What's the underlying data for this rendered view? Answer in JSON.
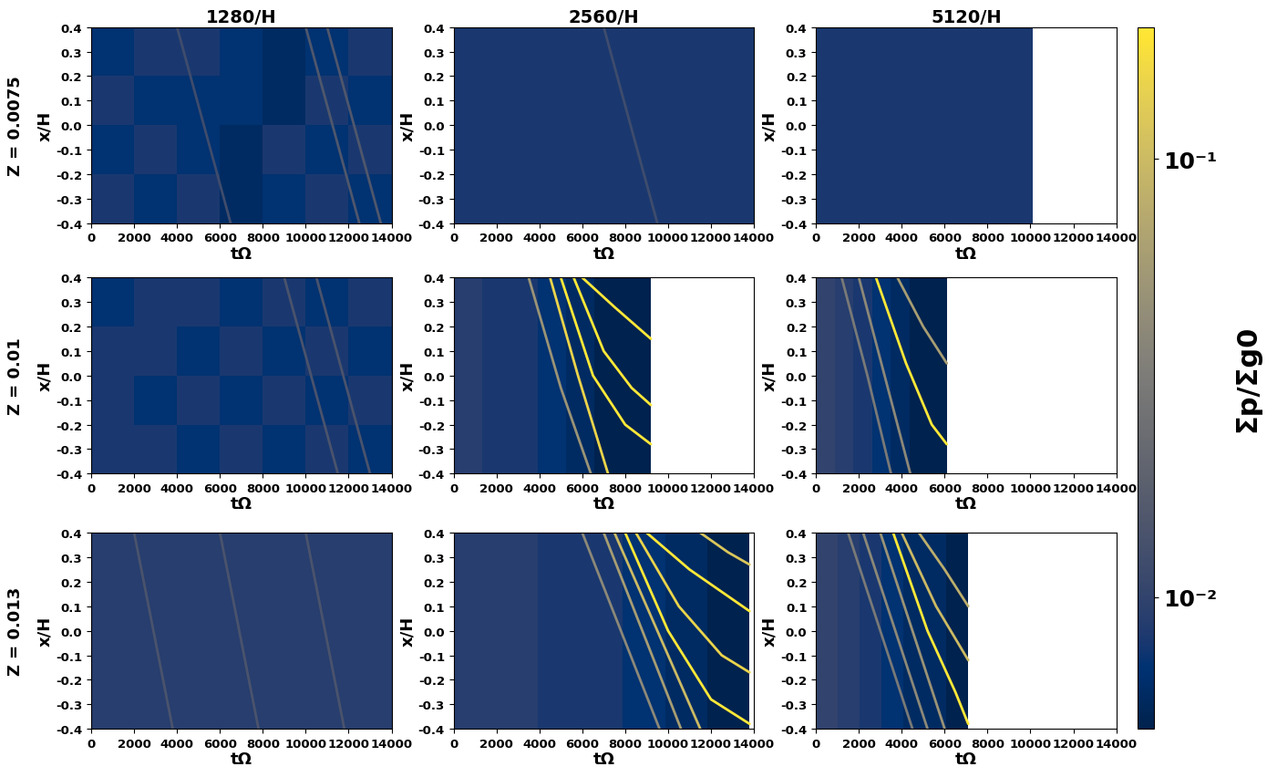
{
  "chart_data": [
    {
      "type": "heatmap",
      "title": "1280/H",
      "row_label": "Z = 0.0075",
      "xlabel": "tΩ",
      "ylabel": "x/H",
      "xlim": [
        0,
        14000
      ],
      "xticks": [
        0,
        2000,
        4000,
        6000,
        8000,
        10000,
        12000,
        14000
      ],
      "ylim": [
        -0.4,
        0.4
      ],
      "yticks": [
        -0.4,
        -0.3,
        -0.2,
        -0.1,
        {
          "value": 0,
          "label": "0.0"
        },
        0.1,
        0.2,
        0.3,
        0.4
      ],
      "t_end": 14000,
      "cells": [
        [
          0.008,
          0.007,
          0.008,
          0.006,
          0.007,
          0.008,
          0.007
        ],
        [
          0.007,
          0.008,
          0.007,
          0.006,
          0.008,
          0.007,
          0.008
        ],
        [
          0.008,
          0.007,
          0.007,
          0.007,
          0.006,
          0.008,
          0.007
        ],
        [
          0.007,
          0.008,
          0.008,
          0.007,
          0.006,
          0.007,
          0.008
        ]
      ],
      "tracks": [
        {
          "t": [
            10000,
            12500
          ],
          "x": [
            0.4,
            -0.4
          ],
          "value": 0.015
        },
        {
          "t": [
            11000,
            13500
          ],
          "x": [
            0.4,
            -0.4
          ],
          "value": 0.015
        },
        {
          "t": [
            4000,
            6500
          ],
          "x": [
            0.4,
            -0.4
          ],
          "value": 0.012
        }
      ],
      "colorbar": {
        "range": [
          0.005,
          0.2
        ],
        "ticks": [
          {
            "value": 0.01,
            "label": "10⁻²"
          },
          {
            "value": 0.1,
            "label": "10⁻¹"
          }
        ],
        "label": "Σp/Σg0",
        "log": true,
        "color": "cividis"
      }
    },
    {
      "type": "heatmap",
      "title": "2560/H",
      "xlabel": "tΩ",
      "ylabel": "x/H",
      "xlim": [
        0,
        14000
      ],
      "xticks": [
        0,
        2000,
        4000,
        6000,
        8000,
        10000,
        12000,
        14000
      ],
      "ylim": [
        -0.4,
        0.4
      ],
      "yticks": [
        -0.4,
        -0.3,
        -0.2,
        -0.1,
        {
          "value": 0,
          "label": "0.0"
        },
        0.1,
        0.2,
        0.3,
        0.4
      ],
      "t_end": 14000,
      "cells": [
        [
          0.008,
          0.008,
          0.008,
          0.008,
          0.008,
          0.008,
          0.008
        ],
        [
          0.008,
          0.008,
          0.008,
          0.008,
          0.008,
          0.008,
          0.008
        ],
        [
          0.008,
          0.008,
          0.008,
          0.008,
          0.008,
          0.008,
          0.008
        ],
        [
          0.008,
          0.008,
          0.008,
          0.008,
          0.008,
          0.008,
          0.008
        ]
      ],
      "tracks": [
        {
          "t": [
            7000,
            9500
          ],
          "x": [
            0.4,
            -0.4
          ],
          "value": 0.012
        }
      ],
      "colorbar": null
    },
    {
      "type": "heatmap",
      "title": "5120/H",
      "xlabel": "tΩ",
      "ylabel": "x/H",
      "xlim": [
        0,
        14000
      ],
      "xticks": [
        0,
        2000,
        4000,
        6000,
        8000,
        10000,
        12000,
        14000
      ],
      "ylim": [
        -0.4,
        0.4
      ],
      "yticks": [
        -0.4,
        -0.3,
        -0.2,
        -0.1,
        {
          "value": 0,
          "label": "0.0"
        },
        0.1,
        0.2,
        0.3,
        0.4
      ],
      "t_end": 10100,
      "cells": [
        [
          0.008,
          0.008,
          0.008,
          0.008,
          0.008,
          0.008,
          0.008
        ],
        [
          0.008,
          0.008,
          0.008,
          0.008,
          0.008,
          0.008,
          0.008
        ],
        [
          0.008,
          0.008,
          0.008,
          0.008,
          0.008,
          0.008,
          0.008
        ],
        [
          0.008,
          0.008,
          0.008,
          0.008,
          0.008,
          0.008,
          0.008
        ]
      ],
      "tracks": [],
      "colorbar": null
    },
    {
      "type": "heatmap",
      "row_label": "Z = 0.01",
      "xlabel": "tΩ",
      "ylabel": "x/H",
      "xlim": [
        0,
        14000
      ],
      "xticks": [
        0,
        2000,
        4000,
        6000,
        8000,
        10000,
        12000,
        14000
      ],
      "ylim": [
        -0.4,
        0.4
      ],
      "yticks": [
        -0.4,
        -0.3,
        -0.2,
        -0.1,
        {
          "value": 0,
          "label": "0.0"
        },
        0.1,
        0.2,
        0.3,
        0.4
      ],
      "t_end": 14000,
      "cells": [
        [
          0.008,
          0.008,
          0.007,
          0.008,
          0.007,
          0.008,
          0.007
        ],
        [
          0.008,
          0.007,
          0.008,
          0.007,
          0.008,
          0.007,
          0.008
        ],
        [
          0.008,
          0.008,
          0.007,
          0.008,
          0.007,
          0.008,
          0.007
        ],
        [
          0.007,
          0.008,
          0.008,
          0.007,
          0.008,
          0.007,
          0.008
        ]
      ],
      "tracks": [
        {
          "t": [
            9000,
            11500
          ],
          "x": [
            0.4,
            -0.4
          ],
          "value": 0.014
        },
        {
          "t": [
            10500,
            13000
          ],
          "x": [
            0.4,
            -0.4
          ],
          "value": 0.014
        }
      ],
      "colorbar": null
    },
    {
      "type": "heatmap",
      "xlabel": "tΩ",
      "ylabel": "x/H",
      "xlim": [
        0,
        14000
      ],
      "xticks": [
        0,
        2000,
        4000,
        6000,
        8000,
        10000,
        12000,
        14000
      ],
      "ylim": [
        -0.4,
        0.4
      ],
      "yticks": [
        -0.4,
        -0.3,
        -0.2,
        -0.1,
        {
          "value": 0,
          "label": "0.0"
        },
        0.1,
        0.2,
        0.3,
        0.4
      ],
      "t_end": 9200,
      "cells": [
        [
          0.009,
          0.008,
          0.008,
          0.007,
          0.006,
          0.005,
          0.005
        ],
        [
          0.009,
          0.008,
          0.008,
          0.007,
          0.006,
          0.005,
          0.005
        ],
        [
          0.009,
          0.008,
          0.008,
          0.007,
          0.006,
          0.005,
          0.005
        ],
        [
          0.009,
          0.008,
          0.008,
          0.007,
          0.006,
          0.005,
          0.005
        ]
      ],
      "tracks": [
        {
          "t": [
            3500,
            5000,
            6400
          ],
          "x": [
            0.4,
            -0.05,
            -0.4
          ],
          "value": 0.05
        },
        {
          "t": [
            4500,
            5800,
            7200
          ],
          "x": [
            0.4,
            0.0,
            -0.4
          ],
          "value": 0.15
        },
        {
          "t": [
            5000,
            6500,
            8000,
            9200
          ],
          "x": [
            0.4,
            0.0,
            -0.2,
            -0.28
          ],
          "value": 0.2
        },
        {
          "t": [
            5600,
            7000,
            8300,
            9200
          ],
          "x": [
            0.4,
            0.1,
            -0.05,
            -0.12
          ],
          "value": 0.2
        },
        {
          "t": [
            6000,
            7500,
            9200
          ],
          "x": [
            0.4,
            0.28,
            0.15
          ],
          "value": 0.2
        }
      ],
      "colorbar": null
    },
    {
      "type": "heatmap",
      "xlabel": "tΩ",
      "ylabel": "x/H",
      "xlim": [
        0,
        14000
      ],
      "xticks": [
        0,
        2000,
        4000,
        6000,
        8000,
        10000,
        12000,
        14000
      ],
      "ylim": [
        -0.4,
        0.4
      ],
      "yticks": [
        -0.4,
        -0.3,
        -0.2,
        -0.1,
        {
          "value": 0,
          "label": "0.0"
        },
        0.1,
        0.2,
        0.3,
        0.4
      ],
      "t_end": 6100,
      "cells": [
        [
          0.01,
          0.009,
          0.008,
          0.007,
          0.006,
          0.005,
          0.005
        ],
        [
          0.01,
          0.009,
          0.008,
          0.007,
          0.006,
          0.005,
          0.005
        ],
        [
          0.01,
          0.009,
          0.008,
          0.007,
          0.006,
          0.005,
          0.005
        ],
        [
          0.01,
          0.009,
          0.008,
          0.007,
          0.006,
          0.005,
          0.005
        ]
      ],
      "tracks": [
        {
          "t": [
            1200,
            2400,
            3500
          ],
          "x": [
            0.4,
            0.0,
            -0.4
          ],
          "value": 0.03
        },
        {
          "t": [
            2000,
            3200,
            4400
          ],
          "x": [
            0.4,
            0.0,
            -0.4
          ],
          "value": 0.04
        },
        {
          "t": [
            2800,
            4200,
            5400,
            6100
          ],
          "x": [
            0.4,
            0.05,
            -0.2,
            -0.28
          ],
          "value": 0.2
        },
        {
          "t": [
            3800,
            5000,
            6100
          ],
          "x": [
            0.4,
            0.2,
            0.05
          ],
          "value": 0.06
        }
      ],
      "colorbar": null
    },
    {
      "type": "heatmap",
      "row_label": "Z = 0.013",
      "xlabel": "tΩ",
      "ylabel": "x/H",
      "xlim": [
        0,
        14000
      ],
      "xticks": [
        0,
        2000,
        4000,
        6000,
        8000,
        10000,
        12000,
        14000
      ],
      "ylim": [
        -0.4,
        0.4
      ],
      "yticks": [
        -0.4,
        -0.3,
        -0.2,
        -0.1,
        {
          "value": 0,
          "label": "0.0"
        },
        0.1,
        0.2,
        0.3,
        0.4
      ],
      "t_end": 14000,
      "cells": [
        [
          0.009,
          0.009,
          0.009,
          0.009,
          0.009,
          0.009,
          0.009
        ],
        [
          0.009,
          0.009,
          0.009,
          0.009,
          0.009,
          0.009,
          0.009
        ],
        [
          0.009,
          0.009,
          0.009,
          0.009,
          0.009,
          0.009,
          0.009
        ],
        [
          0.009,
          0.009,
          0.009,
          0.009,
          0.009,
          0.009,
          0.009
        ]
      ],
      "tracks": [
        {
          "t": [
            2000,
            3800
          ],
          "x": [
            0.4,
            -0.4
          ],
          "value": 0.014
        },
        {
          "t": [
            6000,
            7800
          ],
          "x": [
            0.4,
            -0.4
          ],
          "value": 0.014
        },
        {
          "t": [
            10000,
            11800
          ],
          "x": [
            0.4,
            -0.4
          ],
          "value": 0.014
        }
      ],
      "colorbar": null
    },
    {
      "type": "heatmap",
      "xlabel": "tΩ",
      "ylabel": "x/H",
      "xlim": [
        0,
        14000
      ],
      "xticks": [
        0,
        2000,
        4000,
        6000,
        8000,
        10000,
        12000,
        14000
      ],
      "ylim": [
        -0.4,
        0.4
      ],
      "yticks": [
        -0.4,
        -0.3,
        -0.2,
        -0.1,
        {
          "value": 0,
          "label": "0.0"
        },
        0.1,
        0.2,
        0.3,
        0.4
      ],
      "t_end": 13800,
      "cells": [
        [
          0.009,
          0.009,
          0.008,
          0.008,
          0.007,
          0.006,
          0.005
        ],
        [
          0.009,
          0.009,
          0.008,
          0.008,
          0.007,
          0.006,
          0.005
        ],
        [
          0.009,
          0.009,
          0.008,
          0.008,
          0.007,
          0.006,
          0.005
        ],
        [
          0.009,
          0.009,
          0.008,
          0.008,
          0.007,
          0.006,
          0.005
        ]
      ],
      "tracks": [
        {
          "t": [
            6000,
            7800,
            9600
          ],
          "x": [
            0.4,
            0.0,
            -0.4
          ],
          "value": 0.04
        },
        {
          "t": [
            7000,
            8800,
            10600
          ],
          "x": [
            0.4,
            0.0,
            -0.4
          ],
          "value": 0.06
        },
        {
          "t": [
            7500,
            9500,
            11500
          ],
          "x": [
            0.4,
            0.0,
            -0.4
          ],
          "value": 0.1
        },
        {
          "t": [
            8000,
            10000,
            12000,
            13800
          ],
          "x": [
            0.4,
            0.0,
            -0.28,
            -0.38
          ],
          "value": 0.2
        },
        {
          "t": [
            8500,
            10500,
            12500,
            13800
          ],
          "x": [
            0.4,
            0.1,
            -0.1,
            -0.17
          ],
          "value": 0.15
        },
        {
          "t": [
            9000,
            11000,
            13800
          ],
          "x": [
            0.4,
            0.25,
            0.08
          ],
          "value": 0.2
        },
        {
          "t": [
            11500,
            12800,
            13800
          ],
          "x": [
            0.4,
            0.32,
            0.27
          ],
          "value": 0.12
        }
      ],
      "colorbar": null
    },
    {
      "type": "heatmap",
      "xlabel": "tΩ",
      "ylabel": "x/H",
      "xlim": [
        0,
        14000
      ],
      "xticks": [
        0,
        2000,
        4000,
        6000,
        8000,
        10000,
        12000,
        14000
      ],
      "ylim": [
        -0.4,
        0.4
      ],
      "yticks": [
        -0.4,
        -0.3,
        -0.2,
        -0.1,
        {
          "value": 0,
          "label": "0.0"
        },
        0.1,
        0.2,
        0.3,
        0.4
      ],
      "t_end": 7100,
      "cells": [
        [
          0.01,
          0.009,
          0.008,
          0.007,
          0.006,
          0.006,
          0.005
        ],
        [
          0.01,
          0.009,
          0.008,
          0.007,
          0.006,
          0.006,
          0.005
        ],
        [
          0.01,
          0.009,
          0.008,
          0.007,
          0.006,
          0.006,
          0.005
        ],
        [
          0.01,
          0.009,
          0.008,
          0.007,
          0.006,
          0.006,
          0.005
        ]
      ],
      "tracks": [
        {
          "t": [
            1500,
            3000,
            4500
          ],
          "x": [
            0.4,
            0.0,
            -0.4
          ],
          "value": 0.03
        },
        {
          "t": [
            2200,
            3700,
            5200
          ],
          "x": [
            0.4,
            0.0,
            -0.4
          ],
          "value": 0.04
        },
        {
          "t": [
            3000,
            4500,
            6000
          ],
          "x": [
            0.4,
            0.0,
            -0.4
          ],
          "value": 0.05
        },
        {
          "t": [
            3600,
            5200,
            6500,
            7100
          ],
          "x": [
            0.4,
            0.0,
            -0.25,
            -0.38
          ],
          "value": 0.2
        },
        {
          "t": [
            4000,
            5600,
            7100
          ],
          "x": [
            0.4,
            0.1,
            -0.12
          ],
          "value": 0.1
        },
        {
          "t": [
            4800,
            6000,
            7100
          ],
          "x": [
            0.4,
            0.25,
            0.1
          ],
          "value": 0.08
        }
      ],
      "colorbar": null
    }
  ]
}
